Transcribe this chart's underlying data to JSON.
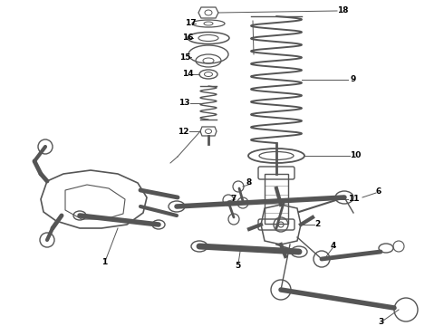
{
  "bg_color": "#ffffff",
  "line_color": "#555555",
  "label_color": "#000000",
  "fig_width": 4.9,
  "fig_height": 3.6,
  "dpi": 100,
  "label_fontsize": 6.5
}
